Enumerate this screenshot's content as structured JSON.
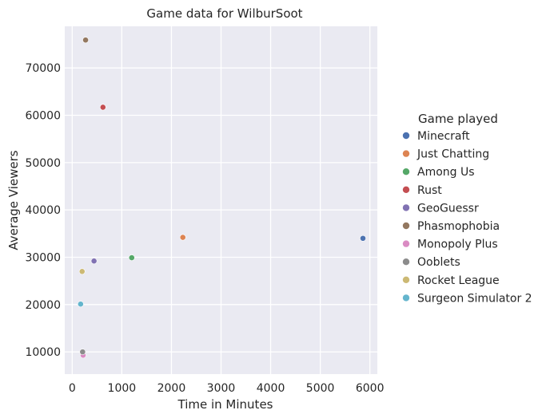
{
  "chart_data": {
    "type": "scatter",
    "title": "Game data for WilburSoot",
    "xlabel": "Time in Minutes",
    "ylabel": "Average Viewers",
    "xlim": [
      -150,
      6150
    ],
    "ylim": [
      5300,
      78800
    ],
    "x_ticks": [
      0,
      1000,
      2000,
      3000,
      4000,
      5000,
      6000
    ],
    "y_ticks": [
      10000,
      20000,
      30000,
      40000,
      50000,
      60000,
      70000
    ],
    "grid": true,
    "background_color": "#eaeaf2",
    "legend": {
      "title": "Game played",
      "placement": "right"
    },
    "series": [
      {
        "name": "Minecraft",
        "color": "#4c72b0",
        "x": 5860,
        "y": 34000
      },
      {
        "name": "Just Chatting",
        "color": "#dd8452",
        "x": 2230,
        "y": 34200
      },
      {
        "name": "Among Us",
        "color": "#55a868",
        "x": 1200,
        "y": 29900
      },
      {
        "name": "Rust",
        "color": "#c44e52",
        "x": 620,
        "y": 61700
      },
      {
        "name": "GeoGuessr",
        "color": "#8172b3",
        "x": 440,
        "y": 29200
      },
      {
        "name": "Phasmophobia",
        "color": "#937860",
        "x": 270,
        "y": 75900
      },
      {
        "name": "Monopoly Plus",
        "color": "#da8bc3",
        "x": 220,
        "y": 9300
      },
      {
        "name": "Ooblets",
        "color": "#8c8c8c",
        "x": 210,
        "y": 10000
      },
      {
        "name": "Rocket League",
        "color": "#ccb974",
        "x": 200,
        "y": 27000
      },
      {
        "name": "Surgeon Simulator 2",
        "color": "#64b5cd",
        "x": 170,
        "y": 20100
      }
    ]
  }
}
